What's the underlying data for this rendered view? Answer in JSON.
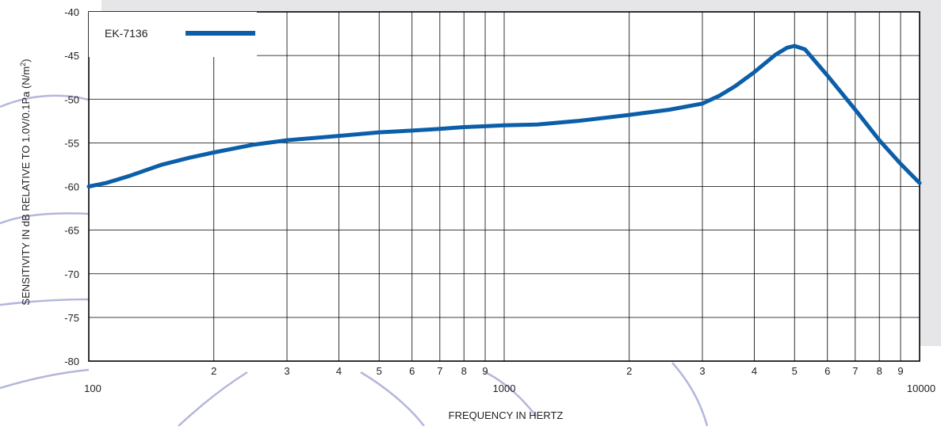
{
  "colors": {
    "series": "#0b5ea8",
    "panel": "#e6e6e9",
    "arc": "#b4b6dc",
    "grid": "#000000"
  },
  "chart_data": {
    "type": "line",
    "title": "",
    "xlabel": "FREQUENCY IN HERTZ",
    "ylabel_main": "SENSITIVITY IN dB RELATIVE TO 1.0V/0.1Pa (N/m",
    "ylabel_sup": "2",
    "ylabel_close": ")",
    "xscale": "log",
    "xlim": [
      100,
      10000
    ],
    "ylim": [
      -80,
      -40
    ],
    "grid": true,
    "legend_position": "top-left",
    "x_major_ticks": [
      {
        "value": 100,
        "label": "100"
      },
      {
        "value": 1000,
        "label": "1000"
      },
      {
        "value": 10000,
        "label": "10000"
      }
    ],
    "x_minor_ticks": [
      {
        "value": 200,
        "label": "2"
      },
      {
        "value": 300,
        "label": "3"
      },
      {
        "value": 400,
        "label": "4"
      },
      {
        "value": 500,
        "label": "5"
      },
      {
        "value": 600,
        "label": "6"
      },
      {
        "value": 700,
        "label": "7"
      },
      {
        "value": 800,
        "label": "8"
      },
      {
        "value": 900,
        "label": "9"
      },
      {
        "value": 2000,
        "label": "2"
      },
      {
        "value": 3000,
        "label": "3"
      },
      {
        "value": 4000,
        "label": "4"
      },
      {
        "value": 5000,
        "label": "5"
      },
      {
        "value": 6000,
        "label": "6"
      },
      {
        "value": 7000,
        "label": "7"
      },
      {
        "value": 8000,
        "label": "8"
      },
      {
        "value": 9000,
        "label": "9"
      }
    ],
    "y_ticks": [
      {
        "value": -40,
        "label": "-40"
      },
      {
        "value": -45,
        "label": "-45"
      },
      {
        "value": -50,
        "label": "-50"
      },
      {
        "value": -55,
        "label": "-55"
      },
      {
        "value": -60,
        "label": "-60"
      },
      {
        "value": -65,
        "label": "-65"
      },
      {
        "value": -70,
        "label": "-70"
      },
      {
        "value": -75,
        "label": "-75"
      },
      {
        "value": -80,
        "label": "-80"
      }
    ],
    "series": [
      {
        "name": "EK-7136",
        "x": [
          100,
          110,
          125,
          150,
          175,
          200,
          250,
          300,
          400,
          500,
          600,
          700,
          800,
          900,
          1000,
          1200,
          1500,
          2000,
          2500,
          3000,
          3300,
          3600,
          4000,
          4500,
          4800,
          5000,
          5300,
          6000,
          7000,
          8000,
          9000,
          10000
        ],
        "y": [
          -60.0,
          -59.6,
          -58.8,
          -57.5,
          -56.7,
          -56.1,
          -55.2,
          -54.7,
          -54.2,
          -53.8,
          -53.6,
          -53.4,
          -53.2,
          -53.1,
          -53.0,
          -52.9,
          -52.5,
          -51.8,
          -51.2,
          -50.5,
          -49.6,
          -48.5,
          -46.9,
          -44.9,
          -44.1,
          -43.9,
          -44.3,
          -47.3,
          -51.2,
          -54.7,
          -57.4,
          -59.6
        ]
      }
    ]
  }
}
